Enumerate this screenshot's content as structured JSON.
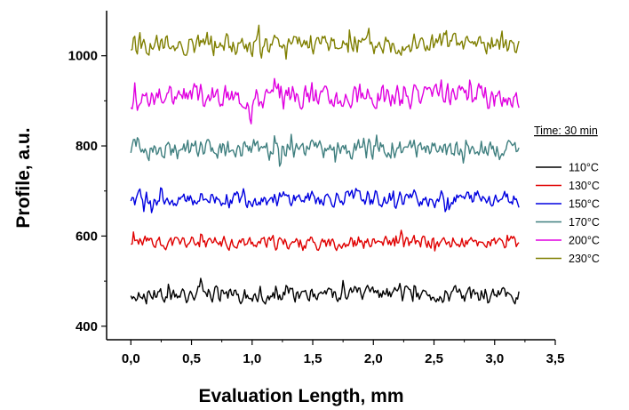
{
  "chart_data": {
    "type": "line",
    "title": "",
    "xlabel": "Evaluation Length, mm",
    "ylabel": "Profile, a.u.",
    "xlim": [
      -0.2,
      3.5
    ],
    "ylim": [
      370,
      1100
    ],
    "xticks": [
      "0,0",
      "0,5",
      "1,0",
      "1,5",
      "2,0",
      "2,5",
      "3,0",
      "3,5"
    ],
    "xtick_values": [
      0,
      0.5,
      1.0,
      1.5,
      2.0,
      2.5,
      3.0,
      3.5
    ],
    "yticks": [
      "400",
      "600",
      "800",
      "1000"
    ],
    "ytick_values": [
      400,
      600,
      800,
      1000
    ],
    "grid": false,
    "legend_title": "Time: 30 min",
    "legend_position": "right",
    "series": [
      {
        "name": "110°C",
        "color": "#000000",
        "baseline": 470,
        "amplitude": 22,
        "x_range": [
          0,
          3.2
        ]
      },
      {
        "name": "130°C",
        "color": "#e00000",
        "baseline": 585,
        "amplitude": 18,
        "x_range": [
          0,
          3.2
        ]
      },
      {
        "name": "150°C",
        "color": "#0000e0",
        "baseline": 683,
        "amplitude": 22,
        "x_range": [
          0,
          3.2
        ]
      },
      {
        "name": "170°C",
        "color": "#3f7f7f",
        "baseline": 792,
        "amplitude": 25,
        "x_range": [
          0,
          3.2
        ]
      },
      {
        "name": "200°C",
        "color": "#e000e0",
        "baseline": 910,
        "amplitude": 32,
        "x_range": [
          0,
          3.2
        ]
      },
      {
        "name": "230°C",
        "color": "#7f7f00",
        "baseline": 1025,
        "amplitude": 30,
        "x_range": [
          0,
          3.2
        ]
      }
    ]
  }
}
